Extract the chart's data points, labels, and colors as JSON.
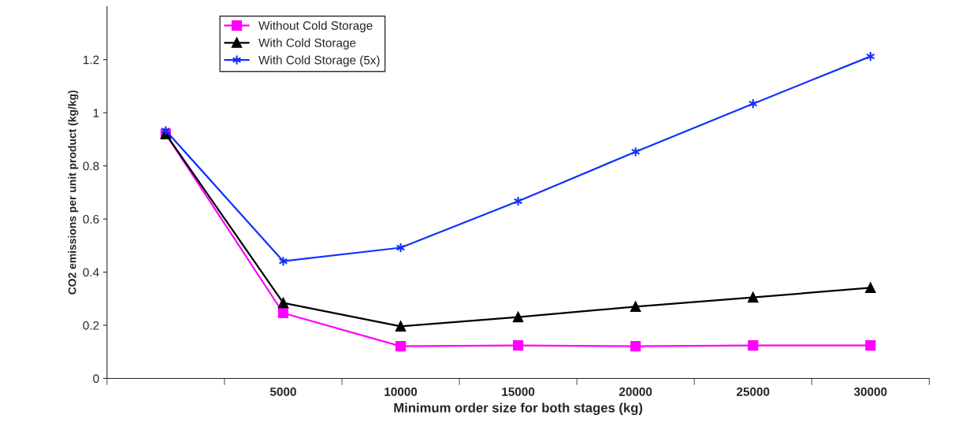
{
  "chart_data": {
    "type": "line",
    "xlabel": "Minimum order size for both stages (kg)",
    "ylabel": "CO2 emissions per unit product (kg/kg)",
    "categories": [
      null,
      "5000",
      "10000",
      "15000",
      "20000",
      "25000",
      "30000"
    ],
    "series": [
      {
        "name": "Without Cold Storage",
        "color": "#ff00ff",
        "marker": "square",
        "values": [
          0.92,
          0.246,
          0.121,
          0.124,
          0.121,
          0.124,
          0.124
        ]
      },
      {
        "name": "With Cold Storage",
        "color": "#000000",
        "marker": "triangle",
        "values": [
          0.92,
          0.284,
          0.196,
          0.231,
          0.27,
          0.305,
          0.341
        ]
      },
      {
        "name": "With Cold Storage (5x)",
        "color": "#1030ff",
        "marker": "cross",
        "values": [
          0.933,
          0.441,
          0.492,
          0.667,
          0.853,
          1.034,
          1.212
        ]
      }
    ],
    "ylim": [
      0,
      1.4
    ],
    "yticks": [
      0,
      0.2,
      0.4,
      0.6,
      0.8,
      1,
      1.2
    ],
    "grid": false,
    "legend": "top left",
    "line_style": "solid"
  }
}
